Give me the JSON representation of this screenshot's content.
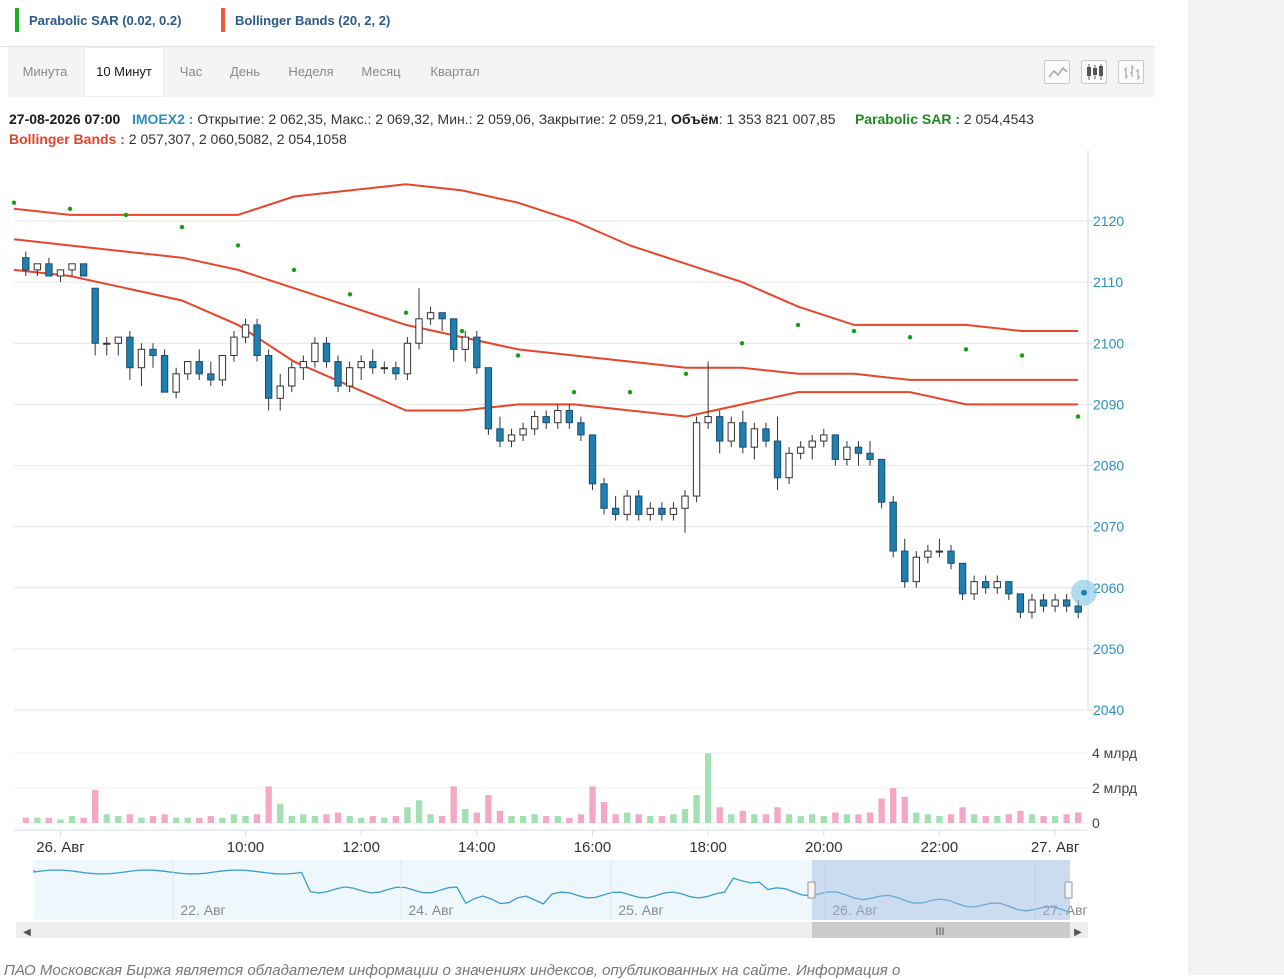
{
  "legend": [
    {
      "label": "Parabolic SAR (0.02, 0.2)",
      "color": "#19b01f"
    },
    {
      "label": "Bollinger Bands (20, 2, 2)",
      "color": "#ef5a36"
    }
  ],
  "tabs": [
    {
      "label": "Минута",
      "active": false
    },
    {
      "label": "10 Минут",
      "active": true
    },
    {
      "label": "Час",
      "active": false
    },
    {
      "label": "День",
      "active": false
    },
    {
      "label": "Неделя",
      "active": false
    },
    {
      "label": "Месяц",
      "active": false
    },
    {
      "label": "Квартал",
      "active": false
    }
  ],
  "chart_types": [
    "line-chart-icon",
    "candlestick-chart-icon",
    "ohlc-bars-icon"
  ],
  "info": {
    "date": "27-08-2026 07:00",
    "ticker": "IMOEX2 :",
    "open_label": "Открытие:",
    "open": "2 062,35,",
    "high_label": "Макс.:",
    "high": "2 069,32,",
    "low_label": "Мин.:",
    "low": "2 059,06,",
    "close_label": "Закрытие:",
    "close": "2 059,21,",
    "volume_label": "Объём",
    "volume": ": 1 353 821 007,85",
    "sar_label": "Parabolic SAR :",
    "sar_value": "2 054,4543",
    "boll_label": "Bollinger Bands :",
    "boll_value": "2 057,307, 2 060,5082, 2 054,1058"
  },
  "footer_text": "ПАО Московская Биржа является обладателем информации о значениях индексов, опубликованных на сайте. Информация о",
  "chart_data": {
    "type": "candlestick",
    "price_axis": {
      "min": 2040,
      "max": 2120,
      "ticks": [
        2040,
        2050,
        2060,
        2070,
        2080,
        2090,
        2100,
        2110,
        2120
      ]
    },
    "volume_axis": {
      "ticks": [
        {
          "value": 0,
          "label": "0"
        },
        {
          "value": 2,
          "label": "2 млрд"
        },
        {
          "value": 4,
          "label": "4 млрд"
        }
      ]
    },
    "time_labels": [
      {
        "index": 3,
        "label": "26. Авг"
      },
      {
        "index": 19,
        "label": "10:00"
      },
      {
        "index": 29,
        "label": "12:00"
      },
      {
        "index": 39,
        "label": "14:00"
      },
      {
        "index": 49,
        "label": "16:00"
      },
      {
        "index": 59,
        "label": "18:00"
      },
      {
        "index": 69,
        "label": "20:00"
      },
      {
        "index": 79,
        "label": "22:00"
      },
      {
        "index": 89,
        "label": "27. Авг"
      }
    ],
    "candles": [
      [
        2114,
        2115,
        2111,
        2112
      ],
      [
        2112,
        2113,
        2111,
        2113
      ],
      [
        2113,
        2114,
        2111,
        2111
      ],
      [
        2111,
        2112,
        2110,
        2112
      ],
      [
        2112,
        2113,
        2111,
        2113
      ],
      [
        2113,
        2113,
        2111,
        2111
      ],
      [
        2109,
        2109,
        2098,
        2100
      ],
      [
        2100,
        2101,
        2098,
        2100
      ],
      [
        2100,
        2101,
        2098,
        2101
      ],
      [
        2101,
        2102,
        2094,
        2096
      ],
      [
        2096,
        2100,
        2093,
        2099
      ],
      [
        2099,
        2100,
        2096,
        2098
      ],
      [
        2098,
        2099,
        2092,
        2092
      ],
      [
        2092,
        2096,
        2091,
        2095
      ],
      [
        2095,
        2097,
        2094,
        2097
      ],
      [
        2097,
        2099,
        2094,
        2095
      ],
      [
        2095,
        2097,
        2093,
        2094
      ],
      [
        2094,
        2098,
        2093,
        2098
      ],
      [
        2098,
        2102,
        2097,
        2101
      ],
      [
        2101,
        2104,
        2100,
        2103
      ],
      [
        2103,
        2104,
        2097,
        2098
      ],
      [
        2098,
        2099,
        2089,
        2091
      ],
      [
        2091,
        2095,
        2089,
        2093
      ],
      [
        2093,
        2097,
        2092,
        2096
      ],
      [
        2096,
        2098,
        2094,
        2097
      ],
      [
        2097,
        2101,
        2096,
        2100
      ],
      [
        2100,
        2101,
        2096,
        2097
      ],
      [
        2097,
        2098,
        2092,
        2093
      ],
      [
        2093,
        2097,
        2092,
        2096
      ],
      [
        2096,
        2098,
        2094,
        2097
      ],
      [
        2097,
        2099,
        2095,
        2096
      ],
      [
        2096,
        2097,
        2095,
        2096
      ],
      [
        2096,
        2097,
        2094,
        2095
      ],
      [
        2095,
        2101,
        2094,
        2100
      ],
      [
        2100,
        2109,
        2099,
        2104
      ],
      [
        2104,
        2106,
        2103,
        2105
      ],
      [
        2105,
        2105,
        2102,
        2104
      ],
      [
        2104,
        2104,
        2097,
        2099
      ],
      [
        2099,
        2102,
        2097,
        2101
      ],
      [
        2101,
        2102,
        2095,
        2096
      ],
      [
        2096,
        2096,
        2085,
        2086
      ],
      [
        2086,
        2088,
        2083,
        2084
      ],
      [
        2084,
        2086,
        2083,
        2085
      ],
      [
        2085,
        2087,
        2084,
        2086
      ],
      [
        2086,
        2089,
        2085,
        2088
      ],
      [
        2088,
        2089,
        2086,
        2087
      ],
      [
        2087,
        2090,
        2086,
        2089
      ],
      [
        2089,
        2090,
        2086,
        2087
      ],
      [
        2087,
        2088,
        2084,
        2085
      ],
      [
        2085,
        2085,
        2076,
        2077
      ],
      [
        2077,
        2078,
        2072,
        2073
      ],
      [
        2073,
        2075,
        2071,
        2072
      ],
      [
        2072,
        2076,
        2071,
        2075
      ],
      [
        2075,
        2076,
        2071,
        2072
      ],
      [
        2072,
        2074,
        2071,
        2073
      ],
      [
        2073,
        2074,
        2071,
        2072
      ],
      [
        2072,
        2074,
        2071,
        2073
      ],
      [
        2073,
        2076,
        2069,
        2075
      ],
      [
        2075,
        2088,
        2074,
        2087
      ],
      [
        2087,
        2097,
        2086,
        2088
      ],
      [
        2088,
        2089,
        2082,
        2084
      ],
      [
        2084,
        2088,
        2083,
        2087
      ],
      [
        2087,
        2089,
        2082,
        2083
      ],
      [
        2083,
        2087,
        2081,
        2086
      ],
      [
        2086,
        2087,
        2083,
        2084
      ],
      [
        2084,
        2088,
        2076,
        2078
      ],
      [
        2078,
        2083,
        2077,
        2082
      ],
      [
        2082,
        2084,
        2081,
        2083
      ],
      [
        2083,
        2085,
        2081,
        2084
      ],
      [
        2084,
        2086,
        2083,
        2085
      ],
      [
        2085,
        2085,
        2080,
        2081
      ],
      [
        2081,
        2084,
        2080,
        2083
      ],
      [
        2083,
        2084,
        2080,
        2082
      ],
      [
        2082,
        2084,
        2080,
        2081
      ],
      [
        2081,
        2081,
        2073,
        2074
      ],
      [
        2074,
        2075,
        2065,
        2066
      ],
      [
        2066,
        2068,
        2060,
        2061
      ],
      [
        2061,
        2066,
        2060,
        2065
      ],
      [
        2065,
        2067,
        2064,
        2066
      ],
      [
        2066,
        2068,
        2065,
        2066
      ],
      [
        2066,
        2067,
        2063,
        2064
      ],
      [
        2064,
        2064,
        2058,
        2059
      ],
      [
        2059,
        2062,
        2058,
        2061
      ],
      [
        2061,
        2062,
        2059,
        2060
      ],
      [
        2060,
        2062,
        2059,
        2061
      ],
      [
        2061,
        2061,
        2058,
        2059
      ],
      [
        2059,
        2059,
        2055,
        2056
      ],
      [
        2056,
        2059,
        2055,
        2058
      ],
      [
        2058,
        2059,
        2056,
        2057
      ],
      [
        2057,
        2059,
        2056,
        2058
      ],
      [
        2058,
        2059,
        2056,
        2057
      ],
      [
        2057,
        2058,
        2055,
        2056
      ]
    ],
    "volumes": [
      0.3,
      0.3,
      0.3,
      0.2,
      0.4,
      0.3,
      1.9,
      0.5,
      0.4,
      0.5,
      0.3,
      0.4,
      0.5,
      0.3,
      0.3,
      0.3,
      0.4,
      0.3,
      0.5,
      0.4,
      0.5,
      2.1,
      1.1,
      0.4,
      0.5,
      0.4,
      0.5,
      0.6,
      0.4,
      0.3,
      0.4,
      0.3,
      0.4,
      0.9,
      1.3,
      0.5,
      0.4,
      2.1,
      0.8,
      0.6,
      1.6,
      0.7,
      0.4,
      0.4,
      0.5,
      0.4,
      0.4,
      0.3,
      0.5,
      2.1,
      1.2,
      0.5,
      0.6,
      0.5,
      0.4,
      0.4,
      0.5,
      0.8,
      1.6,
      4.0,
      0.9,
      0.5,
      0.7,
      0.5,
      0.5,
      0.9,
      0.5,
      0.4,
      0.5,
      0.4,
      0.6,
      0.5,
      0.5,
      0.6,
      1.4,
      2.0,
      1.5,
      0.6,
      0.5,
      0.4,
      0.5,
      0.9,
      0.5,
      0.4,
      0.4,
      0.5,
      0.7,
      0.5,
      0.4,
      0.4,
      0.5,
      0.6
    ],
    "bollinger_upper": [
      2122,
      2121,
      2121,
      2121,
      2121,
      2124,
      2125,
      2126,
      2125,
      2123,
      2120,
      2116,
      2113,
      2110,
      2106,
      2103,
      2103,
      2103,
      2102,
      2102
    ],
    "bollinger_middle": [
      2117,
      2116,
      2115,
      2114,
      2112,
      2109,
      2106,
      2103,
      2101,
      2099,
      2098,
      2097,
      2096,
      2096,
      2095,
      2095,
      2094,
      2094,
      2094,
      2094
    ],
    "bollinger_lower": [
      2112,
      2111,
      2109,
      2107,
      2103,
      2097,
      2093,
      2089,
      2089,
      2090,
      2090,
      2089,
      2088,
      2090,
      2092,
      2092,
      2092,
      2090,
      2090,
      2090
    ],
    "sar": [
      2123,
      2122,
      2121,
      2119,
      2116,
      2112,
      2108,
      2105,
      2102,
      2098,
      2092,
      2092,
      2095,
      2100,
      2103,
      2102,
      2101,
      2099,
      2098,
      2088
    ]
  },
  "navigator": {
    "labels": [
      "22. Авг",
      "24. Авг",
      "25. Авг",
      "26. Авг",
      "27. Авг"
    ],
    "scroll_icon": "scroll-grip-icon"
  }
}
